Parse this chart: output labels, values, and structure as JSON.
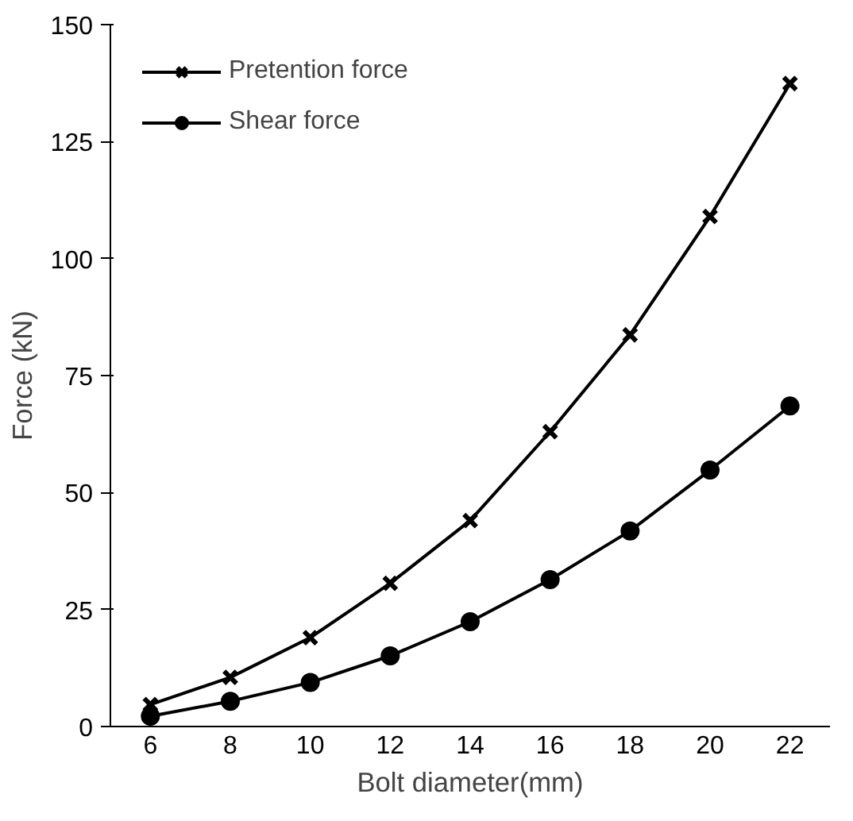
{
  "chart_data": {
    "type": "line",
    "xlabel": "Bolt diameter(mm)",
    "ylabel": "Force (kN)",
    "categories": [
      "6",
      "8",
      "10",
      "12",
      "14",
      "16",
      "18",
      "20",
      "22"
    ],
    "series": [
      {
        "name": "Pretention force",
        "color": "#000000",
        "marker": "cross",
        "values": [
          4.7,
          10.5,
          19,
          30.6,
          44,
          63,
          83.7,
          109,
          137.4
        ]
      },
      {
        "name": "Shear force",
        "color": "#000000",
        "marker": "circle",
        "values": [
          2.2,
          5.4,
          9.4,
          15.1,
          22.4,
          31.4,
          41.8,
          54.8,
          68.5
        ]
      }
    ],
    "ylim": [
      0,
      150
    ],
    "yticks": [
      0,
      25,
      50,
      75,
      100,
      125,
      150
    ],
    "grid": false,
    "legend": "top left",
    "line_style": "solid"
  }
}
